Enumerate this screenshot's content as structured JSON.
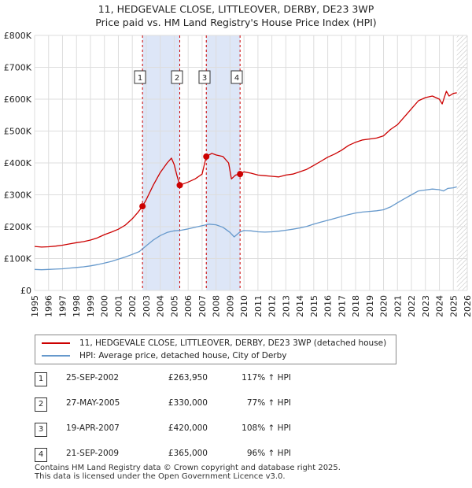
{
  "title_line1": "11, HEDGEVALE CLOSE, LITTLEOVER, DERBY, DE23 3WP",
  "title_line2": "Price paid vs. HM Land Registry's House Price Index (HPI)",
  "colors": {
    "property": "#cc0000",
    "hpi": "#6699cc",
    "shade": "#dde6f7",
    "grid": "#dddddd",
    "marker_line": "#cc0000"
  },
  "chart_data": {
    "type": "line",
    "x_range": [
      1995,
      2026
    ],
    "ylim": [
      0,
      800000
    ],
    "y_ticks": [
      {
        "value": 0,
        "label": "£0"
      },
      {
        "value": 100000,
        "label": "£100K"
      },
      {
        "value": 200000,
        "label": "£200K"
      },
      {
        "value": 300000,
        "label": "£300K"
      },
      {
        "value": 400000,
        "label": "£400K"
      },
      {
        "value": 500000,
        "label": "£500K"
      },
      {
        "value": 600000,
        "label": "£600K"
      },
      {
        "value": 700000,
        "label": "£700K"
      },
      {
        "value": 800000,
        "label": "£800K"
      }
    ],
    "x_ticks": [
      "1995",
      "1996",
      "1997",
      "1998",
      "1999",
      "2000",
      "2001",
      "2002",
      "2003",
      "2004",
      "2005",
      "2006",
      "2007",
      "2008",
      "2009",
      "2010",
      "2011",
      "2012",
      "2013",
      "2014",
      "2015",
      "2016",
      "2017",
      "2018",
      "2019",
      "2020",
      "2021",
      "2022",
      "2023",
      "2024",
      "2025",
      "2026"
    ],
    "shaded_periods": [
      [
        2002.73,
        2005.4
      ],
      [
        2007.3,
        2009.72
      ]
    ],
    "future_hatch_from": 2025.25,
    "series": [
      {
        "name": "11, HEDGEVALE CLOSE, LITTLEOVER, DERBY, DE23 3WP (detached house)",
        "color": "#cc0000",
        "points": [
          [
            1995.0,
            138000
          ],
          [
            1995.5,
            136000
          ],
          [
            1996.0,
            137000
          ],
          [
            1996.5,
            139000
          ],
          [
            1997.0,
            142000
          ],
          [
            1997.5,
            146000
          ],
          [
            1998.0,
            150000
          ],
          [
            1998.5,
            153000
          ],
          [
            1999.0,
            158000
          ],
          [
            1999.5,
            165000
          ],
          [
            2000.0,
            175000
          ],
          [
            2000.5,
            183000
          ],
          [
            2001.0,
            192000
          ],
          [
            2001.5,
            205000
          ],
          [
            2002.0,
            225000
          ],
          [
            2002.4,
            245000
          ],
          [
            2002.73,
            263950
          ],
          [
            2003.0,
            285000
          ],
          [
            2003.5,
            330000
          ],
          [
            2004.0,
            370000
          ],
          [
            2004.5,
            400000
          ],
          [
            2004.8,
            415000
          ],
          [
            2005.0,
            395000
          ],
          [
            2005.2,
            360000
          ],
          [
            2005.4,
            330000
          ],
          [
            2005.7,
            335000
          ],
          [
            2006.0,
            340000
          ],
          [
            2006.5,
            350000
          ],
          [
            2007.0,
            365000
          ],
          [
            2007.3,
            420000
          ],
          [
            2007.7,
            430000
          ],
          [
            2008.0,
            425000
          ],
          [
            2008.5,
            420000
          ],
          [
            2008.9,
            400000
          ],
          [
            2009.1,
            350000
          ],
          [
            2009.4,
            362000
          ],
          [
            2009.72,
            365000
          ],
          [
            2010.0,
            372000
          ],
          [
            2010.5,
            368000
          ],
          [
            2011.0,
            362000
          ],
          [
            2011.5,
            360000
          ],
          [
            2012.0,
            358000
          ],
          [
            2012.5,
            356000
          ],
          [
            2013.0,
            362000
          ],
          [
            2013.5,
            365000
          ],
          [
            2014.0,
            372000
          ],
          [
            2014.5,
            380000
          ],
          [
            2015.0,
            392000
          ],
          [
            2015.5,
            405000
          ],
          [
            2016.0,
            418000
          ],
          [
            2016.5,
            428000
          ],
          [
            2017.0,
            440000
          ],
          [
            2017.5,
            455000
          ],
          [
            2018.0,
            465000
          ],
          [
            2018.5,
            472000
          ],
          [
            2019.0,
            475000
          ],
          [
            2019.5,
            478000
          ],
          [
            2020.0,
            485000
          ],
          [
            2020.5,
            505000
          ],
          [
            2021.0,
            520000
          ],
          [
            2021.5,
            545000
          ],
          [
            2022.0,
            570000
          ],
          [
            2022.5,
            595000
          ],
          [
            2023.0,
            605000
          ],
          [
            2023.5,
            610000
          ],
          [
            2024.0,
            600000
          ],
          [
            2024.2,
            585000
          ],
          [
            2024.5,
            625000
          ],
          [
            2024.7,
            610000
          ],
          [
            2025.0,
            618000
          ],
          [
            2025.25,
            620000
          ]
        ]
      },
      {
        "name": "HPI: Average price, detached house, City of Derby",
        "color": "#6699cc",
        "points": [
          [
            1995.0,
            66000
          ],
          [
            1995.5,
            65000
          ],
          [
            1996.0,
            66000
          ],
          [
            1996.5,
            67000
          ],
          [
            1997.0,
            68000
          ],
          [
            1997.5,
            70000
          ],
          [
            1998.0,
            72000
          ],
          [
            1998.5,
            74000
          ],
          [
            1999.0,
            77000
          ],
          [
            1999.5,
            81000
          ],
          [
            2000.0,
            86000
          ],
          [
            2000.5,
            91000
          ],
          [
            2001.0,
            98000
          ],
          [
            2001.5,
            105000
          ],
          [
            2002.0,
            113000
          ],
          [
            2002.5,
            122000
          ],
          [
            2003.0,
            140000
          ],
          [
            2003.5,
            158000
          ],
          [
            2004.0,
            172000
          ],
          [
            2004.5,
            182000
          ],
          [
            2005.0,
            187000
          ],
          [
            2005.5,
            189000
          ],
          [
            2006.0,
            193000
          ],
          [
            2006.5,
            198000
          ],
          [
            2007.0,
            203000
          ],
          [
            2007.5,
            208000
          ],
          [
            2008.0,
            206000
          ],
          [
            2008.5,
            198000
          ],
          [
            2009.0,
            182000
          ],
          [
            2009.3,
            168000
          ],
          [
            2009.7,
            183000
          ],
          [
            2010.0,
            188000
          ],
          [
            2010.5,
            187000
          ],
          [
            2011.0,
            184000
          ],
          [
            2011.5,
            183000
          ],
          [
            2012.0,
            184000
          ],
          [
            2012.5,
            186000
          ],
          [
            2013.0,
            189000
          ],
          [
            2013.5,
            192000
          ],
          [
            2014.0,
            196000
          ],
          [
            2014.5,
            201000
          ],
          [
            2015.0,
            208000
          ],
          [
            2015.5,
            214000
          ],
          [
            2016.0,
            220000
          ],
          [
            2016.5,
            226000
          ],
          [
            2017.0,
            232000
          ],
          [
            2017.5,
            238000
          ],
          [
            2018.0,
            243000
          ],
          [
            2018.5,
            246000
          ],
          [
            2019.0,
            248000
          ],
          [
            2019.5,
            250000
          ],
          [
            2020.0,
            253000
          ],
          [
            2020.5,
            262000
          ],
          [
            2021.0,
            275000
          ],
          [
            2021.5,
            288000
          ],
          [
            2022.0,
            300000
          ],
          [
            2022.5,
            312000
          ],
          [
            2023.0,
            315000
          ],
          [
            2023.5,
            318000
          ],
          [
            2024.0,
            316000
          ],
          [
            2024.3,
            312000
          ],
          [
            2024.6,
            320000
          ],
          [
            2025.0,
            322000
          ],
          [
            2025.25,
            325000
          ]
        ]
      }
    ],
    "sales": [
      {
        "num": "1",
        "x": 2002.73,
        "y": 263950
      },
      {
        "num": "2",
        "x": 2005.4,
        "y": 330000
      },
      {
        "num": "3",
        "x": 2007.3,
        "y": 420000
      },
      {
        "num": "4",
        "x": 2009.72,
        "y": 365000
      }
    ]
  },
  "legend": {
    "property_label": "11, HEDGEVALE CLOSE, LITTLEOVER, DERBY, DE23 3WP (detached house)",
    "hpi_label": "HPI: Average price, detached house, City of Derby"
  },
  "sales_table": [
    {
      "num": "1",
      "date": "25-SEP-2002",
      "price": "£263,950",
      "hpi": "117% ↑ HPI"
    },
    {
      "num": "2",
      "date": "27-MAY-2005",
      "price": "£330,000",
      "hpi": "77% ↑ HPI"
    },
    {
      "num": "3",
      "date": "19-APR-2007",
      "price": "£420,000",
      "hpi": "108% ↑ HPI"
    },
    {
      "num": "4",
      "date": "21-SEP-2009",
      "price": "£365,000",
      "hpi": "96% ↑ HPI"
    }
  ],
  "footer_line1": "Contains HM Land Registry data © Crown copyright and database right 2025.",
  "footer_line2": "This data is licensed under the Open Government Licence v3.0."
}
